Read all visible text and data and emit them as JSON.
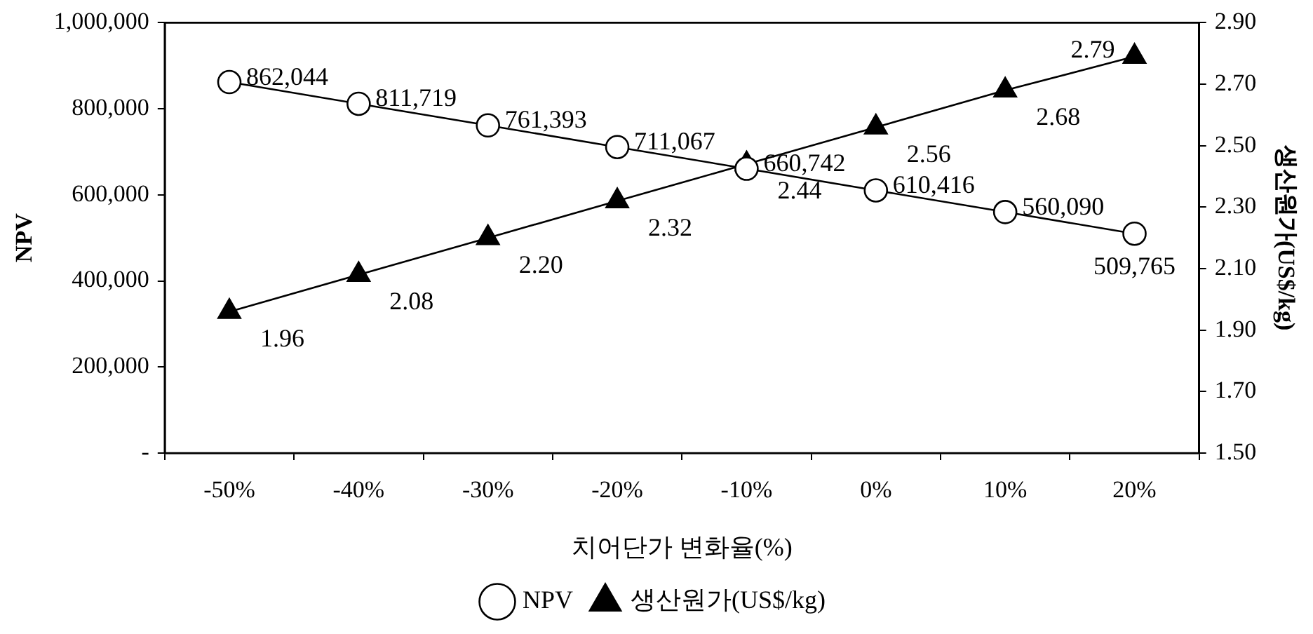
{
  "chart_data": {
    "type": "line",
    "xlabel": "치어단가 변화율(%)",
    "ylabel": "NPV",
    "y2label": "생산원가(US$/kg)",
    "categories": [
      "-50%",
      "-40%",
      "-30%",
      "-20%",
      "-10%",
      "0%",
      "10%",
      "20%"
    ],
    "series": [
      {
        "name": "NPV",
        "color": "#000000",
        "marker": "circle",
        "values": [
          862044,
          811719,
          761393,
          711067,
          660742,
          610416,
          560090,
          509765
        ],
        "value_labels": [
          "862,044",
          "811,719",
          "761,393",
          "711,067",
          "660,742",
          "610,416",
          "560,090",
          "509,765"
        ]
      },
      {
        "name": "생산원가(US$/kg)",
        "color": "#000000",
        "marker": "triangle",
        "axis": "y2",
        "values": [
          1.96,
          2.08,
          2.2,
          2.32,
          2.44,
          2.56,
          2.68,
          2.79
        ],
        "value_labels": [
          "1.96",
          "2.08",
          "2.20",
          "2.32",
          "2.44",
          "2.56",
          "2.68",
          "2.79"
        ]
      }
    ],
    "ylim": [
      0,
      1000000
    ],
    "yticks": [
      {
        "value": 0,
        "label": "-"
      },
      {
        "value": 200000,
        "label": "200,000"
      },
      {
        "value": 400000,
        "label": "400,000"
      },
      {
        "value": 600000,
        "label": "600,000"
      },
      {
        "value": 800000,
        "label": "800,000"
      },
      {
        "value": 1000000,
        "label": "1,000,000"
      }
    ],
    "y2lim": [
      1.5,
      2.9
    ],
    "y2ticks": [
      {
        "value": 1.5,
        "label": "1.50"
      },
      {
        "value": 1.7,
        "label": "1.70"
      },
      {
        "value": 1.9,
        "label": "1.90"
      },
      {
        "value": 2.1,
        "label": "2.10"
      },
      {
        "value": 2.3,
        "label": "2.30"
      },
      {
        "value": 2.5,
        "label": "2.50"
      },
      {
        "value": 2.7,
        "label": "2.70"
      },
      {
        "value": 2.9,
        "label": "2.90"
      }
    ],
    "grid": false,
    "legend": "bottom",
    "line_style": "solid"
  }
}
